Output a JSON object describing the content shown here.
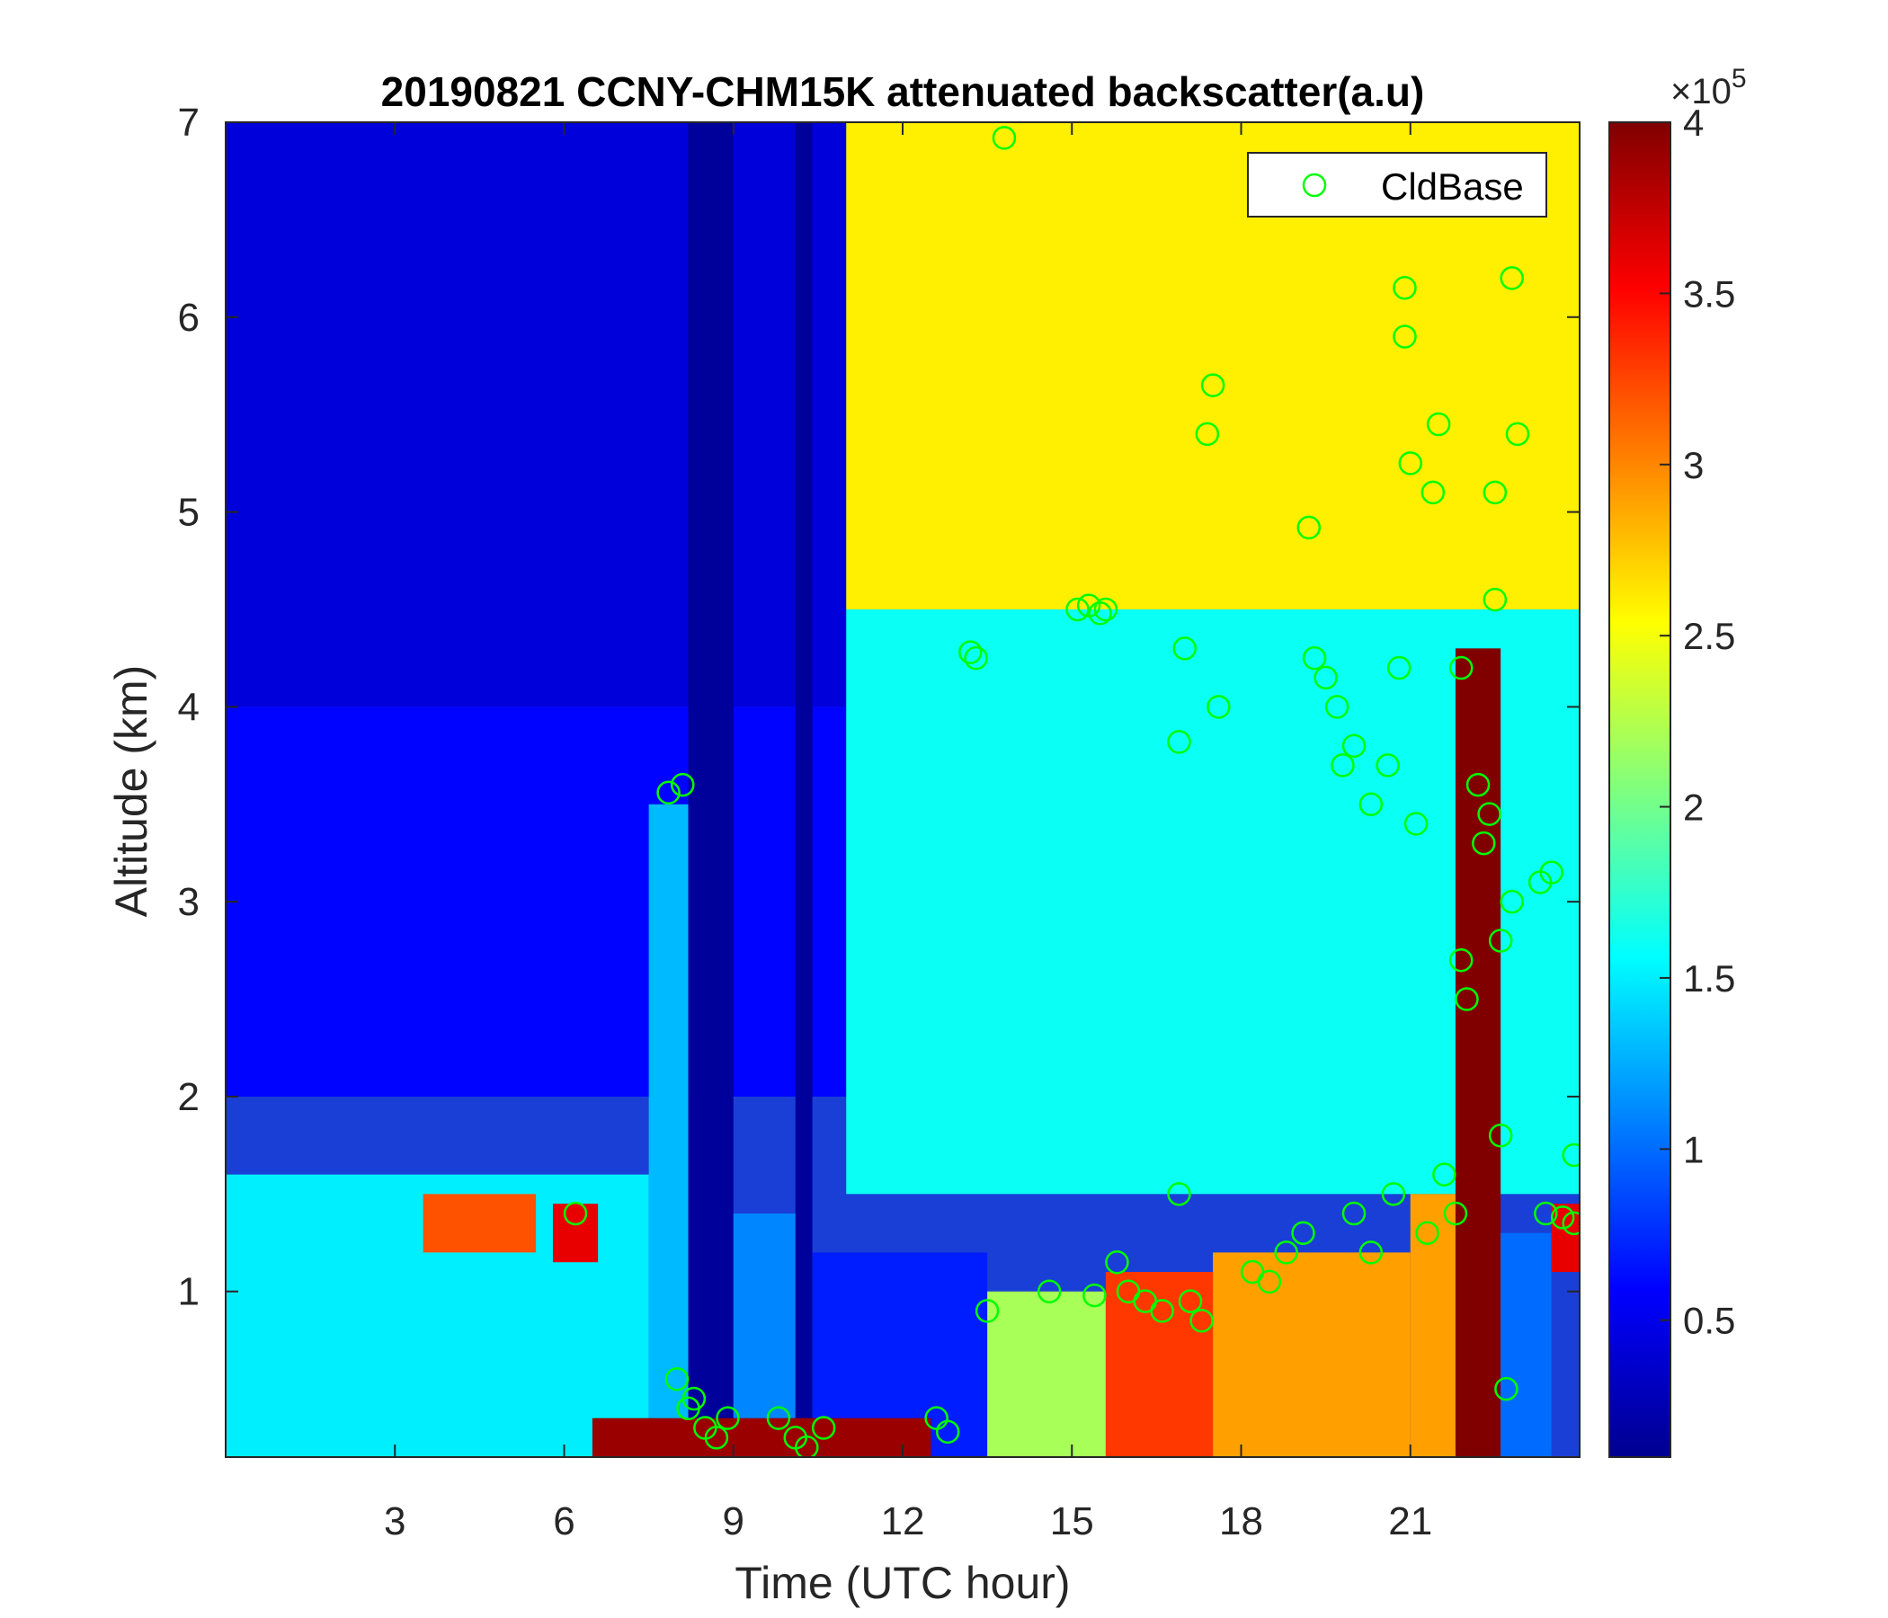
{
  "chart_data": {
    "type": "heatmap",
    "title": "20190821 CCNY-CHM15K attenuated backscatter(a.u)",
    "xlabel": "Time (UTC hour)",
    "ylabel": "Altitude (km)",
    "xlim": [
      0,
      24
    ],
    "ylim": [
      0.15,
      7
    ],
    "x_ticks": [
      3,
      6,
      9,
      12,
      15,
      18,
      21
    ],
    "y_ticks": [
      1,
      2,
      3,
      4,
      5,
      6,
      7
    ],
    "colorbar": {
      "clim": [
        0.1,
        4
      ],
      "ticks": [
        0.5,
        1,
        1.5,
        2,
        2.5,
        3,
        3.5,
        4
      ],
      "exponent_base": "×10",
      "exponent_power": "5",
      "colormap": "jet"
    },
    "legend": {
      "position": "top-right",
      "entries": [
        {
          "name": "CldBase",
          "marker": "circle",
          "color": "#00ff00"
        }
      ]
    },
    "background_regions": [
      {
        "t0": 0.0,
        "t1": 11.0,
        "h0": 4.0,
        "h1": 7.0,
        "value": 0.45
      },
      {
        "t0": 0.0,
        "t1": 11.0,
        "h0": 2.0,
        "h1": 4.0,
        "value": 0.6
      },
      {
        "t0": 11.0,
        "t1": 24.0,
        "h0": 4.5,
        "h1": 7.0,
        "value": 2.6
      },
      {
        "t0": 11.0,
        "t1": 24.0,
        "h0": 1.5,
        "h1": 4.5,
        "value": 1.6
      },
      {
        "t0": 0.0,
        "t1": 7.5,
        "h0": 0.15,
        "h1": 1.6,
        "value": 1.5
      },
      {
        "t0": 7.5,
        "t1": 8.2,
        "h0": 0.15,
        "h1": 3.5,
        "value": 1.3
      },
      {
        "t0": 8.2,
        "t1": 9.0,
        "h0": 0.15,
        "h1": 7.0,
        "value": 0.2
      },
      {
        "t0": 9.0,
        "t1": 10.1,
        "h0": 0.15,
        "h1": 1.4,
        "value": 1.1
      },
      {
        "t0": 10.1,
        "t1": 10.4,
        "h0": 0.15,
        "h1": 7.0,
        "value": 0.2
      },
      {
        "t0": 10.4,
        "t1": 13.5,
        "h0": 0.15,
        "h1": 1.2,
        "value": 0.7
      },
      {
        "t0": 13.5,
        "t1": 15.6,
        "h0": 0.15,
        "h1": 1.0,
        "value": 2.2
      },
      {
        "t0": 15.6,
        "t1": 17.5,
        "h0": 0.15,
        "h1": 1.1,
        "value": 3.3
      },
      {
        "t0": 17.5,
        "t1": 21.0,
        "h0": 0.15,
        "h1": 1.2,
        "value": 2.9
      },
      {
        "t0": 21.0,
        "t1": 21.8,
        "h0": 0.15,
        "h1": 1.5,
        "value": 2.9
      },
      {
        "t0": 21.8,
        "t1": 22.6,
        "h0": 0.15,
        "h1": 4.3,
        "value": 4.0
      },
      {
        "t0": 22.6,
        "t1": 23.5,
        "h0": 0.15,
        "h1": 1.3,
        "value": 1.0
      },
      {
        "t0": 23.5,
        "t1": 24.0,
        "h0": 1.1,
        "h1": 1.45,
        "value": 3.6
      },
      {
        "t0": 6.5,
        "t1": 12.5,
        "h0": 0.15,
        "h1": 0.35,
        "value": 3.9
      },
      {
        "t0": 3.5,
        "t1": 5.5,
        "h0": 1.2,
        "h1": 1.5,
        "value": 3.2
      },
      {
        "t0": 5.8,
        "t1": 6.6,
        "h0": 1.15,
        "h1": 1.45,
        "value": 3.6
      }
    ],
    "series": [
      {
        "name": "CldBase",
        "points": [
          {
            "x": 13.8,
            "y": 6.92
          },
          {
            "x": 6.2,
            "y": 1.4
          },
          {
            "x": 7.85,
            "y": 3.56
          },
          {
            "x": 8.1,
            "y": 3.6
          },
          {
            "x": 8.0,
            "y": 0.55
          },
          {
            "x": 8.3,
            "y": 0.45
          },
          {
            "x": 8.5,
            "y": 0.3
          },
          {
            "x": 8.7,
            "y": 0.25
          },
          {
            "x": 8.9,
            "y": 0.35
          },
          {
            "x": 8.2,
            "y": 0.4
          },
          {
            "x": 9.8,
            "y": 0.35
          },
          {
            "x": 10.1,
            "y": 0.25
          },
          {
            "x": 10.3,
            "y": 0.2
          },
          {
            "x": 10.6,
            "y": 0.3
          },
          {
            "x": 12.6,
            "y": 0.35
          },
          {
            "x": 12.8,
            "y": 0.28
          },
          {
            "x": 13.2,
            "y": 4.28
          },
          {
            "x": 13.3,
            "y": 4.25
          },
          {
            "x": 13.5,
            "y": 0.9
          },
          {
            "x": 14.6,
            "y": 1.0
          },
          {
            "x": 15.1,
            "y": 4.5
          },
          {
            "x": 15.3,
            "y": 4.52
          },
          {
            "x": 15.5,
            "y": 4.48
          },
          {
            "x": 15.6,
            "y": 4.5
          },
          {
            "x": 15.4,
            "y": 0.98
          },
          {
            "x": 15.8,
            "y": 1.15
          },
          {
            "x": 16.0,
            "y": 1.0
          },
          {
            "x": 16.3,
            "y": 0.95
          },
          {
            "x": 16.6,
            "y": 0.9
          },
          {
            "x": 16.9,
            "y": 1.5
          },
          {
            "x": 17.0,
            "y": 4.3
          },
          {
            "x": 16.9,
            "y": 3.82
          },
          {
            "x": 17.1,
            "y": 0.95
          },
          {
            "x": 17.3,
            "y": 0.85
          },
          {
            "x": 17.4,
            "y": 5.4
          },
          {
            "x": 17.5,
            "y": 5.65
          },
          {
            "x": 17.6,
            "y": 4.0
          },
          {
            "x": 18.2,
            "y": 1.1
          },
          {
            "x": 18.5,
            "y": 1.05
          },
          {
            "x": 18.8,
            "y": 1.2
          },
          {
            "x": 19.1,
            "y": 1.3
          },
          {
            "x": 19.2,
            "y": 4.92
          },
          {
            "x": 19.3,
            "y": 4.25
          },
          {
            "x": 19.5,
            "y": 4.15
          },
          {
            "x": 19.7,
            "y": 4.0
          },
          {
            "x": 19.8,
            "y": 3.7
          },
          {
            "x": 20.0,
            "y": 3.8
          },
          {
            "x": 20.3,
            "y": 3.5
          },
          {
            "x": 20.6,
            "y": 3.7
          },
          {
            "x": 20.8,
            "y": 4.2
          },
          {
            "x": 20.0,
            "y": 1.4
          },
          {
            "x": 20.3,
            "y": 1.2
          },
          {
            "x": 20.7,
            "y": 1.5
          },
          {
            "x": 20.9,
            "y": 6.15
          },
          {
            "x": 20.9,
            "y": 5.9
          },
          {
            "x": 21.0,
            "y": 5.25
          },
          {
            "x": 21.1,
            "y": 3.4
          },
          {
            "x": 21.3,
            "y": 1.3
          },
          {
            "x": 21.4,
            "y": 5.1
          },
          {
            "x": 21.5,
            "y": 5.45
          },
          {
            "x": 21.6,
            "y": 1.6
          },
          {
            "x": 21.8,
            "y": 1.4
          },
          {
            "x": 21.9,
            "y": 4.2
          },
          {
            "x": 21.9,
            "y": 2.7
          },
          {
            "x": 22.0,
            "y": 2.5
          },
          {
            "x": 22.2,
            "y": 3.6
          },
          {
            "x": 22.3,
            "y": 3.3
          },
          {
            "x": 22.4,
            "y": 3.45
          },
          {
            "x": 22.5,
            "y": 4.55
          },
          {
            "x": 22.5,
            "y": 5.1
          },
          {
            "x": 22.6,
            "y": 2.8
          },
          {
            "x": 22.6,
            "y": 1.8
          },
          {
            "x": 22.7,
            "y": 0.5
          },
          {
            "x": 22.8,
            "y": 6.2
          },
          {
            "x": 22.9,
            "y": 5.4
          },
          {
            "x": 22.8,
            "y": 3.0
          },
          {
            "x": 23.3,
            "y": 3.1
          },
          {
            "x": 23.5,
            "y": 3.15
          },
          {
            "x": 23.4,
            "y": 1.4
          },
          {
            "x": 23.7,
            "y": 1.38
          },
          {
            "x": 23.9,
            "y": 1.35
          },
          {
            "x": 23.9,
            "y": 1.7
          }
        ]
      }
    ]
  }
}
